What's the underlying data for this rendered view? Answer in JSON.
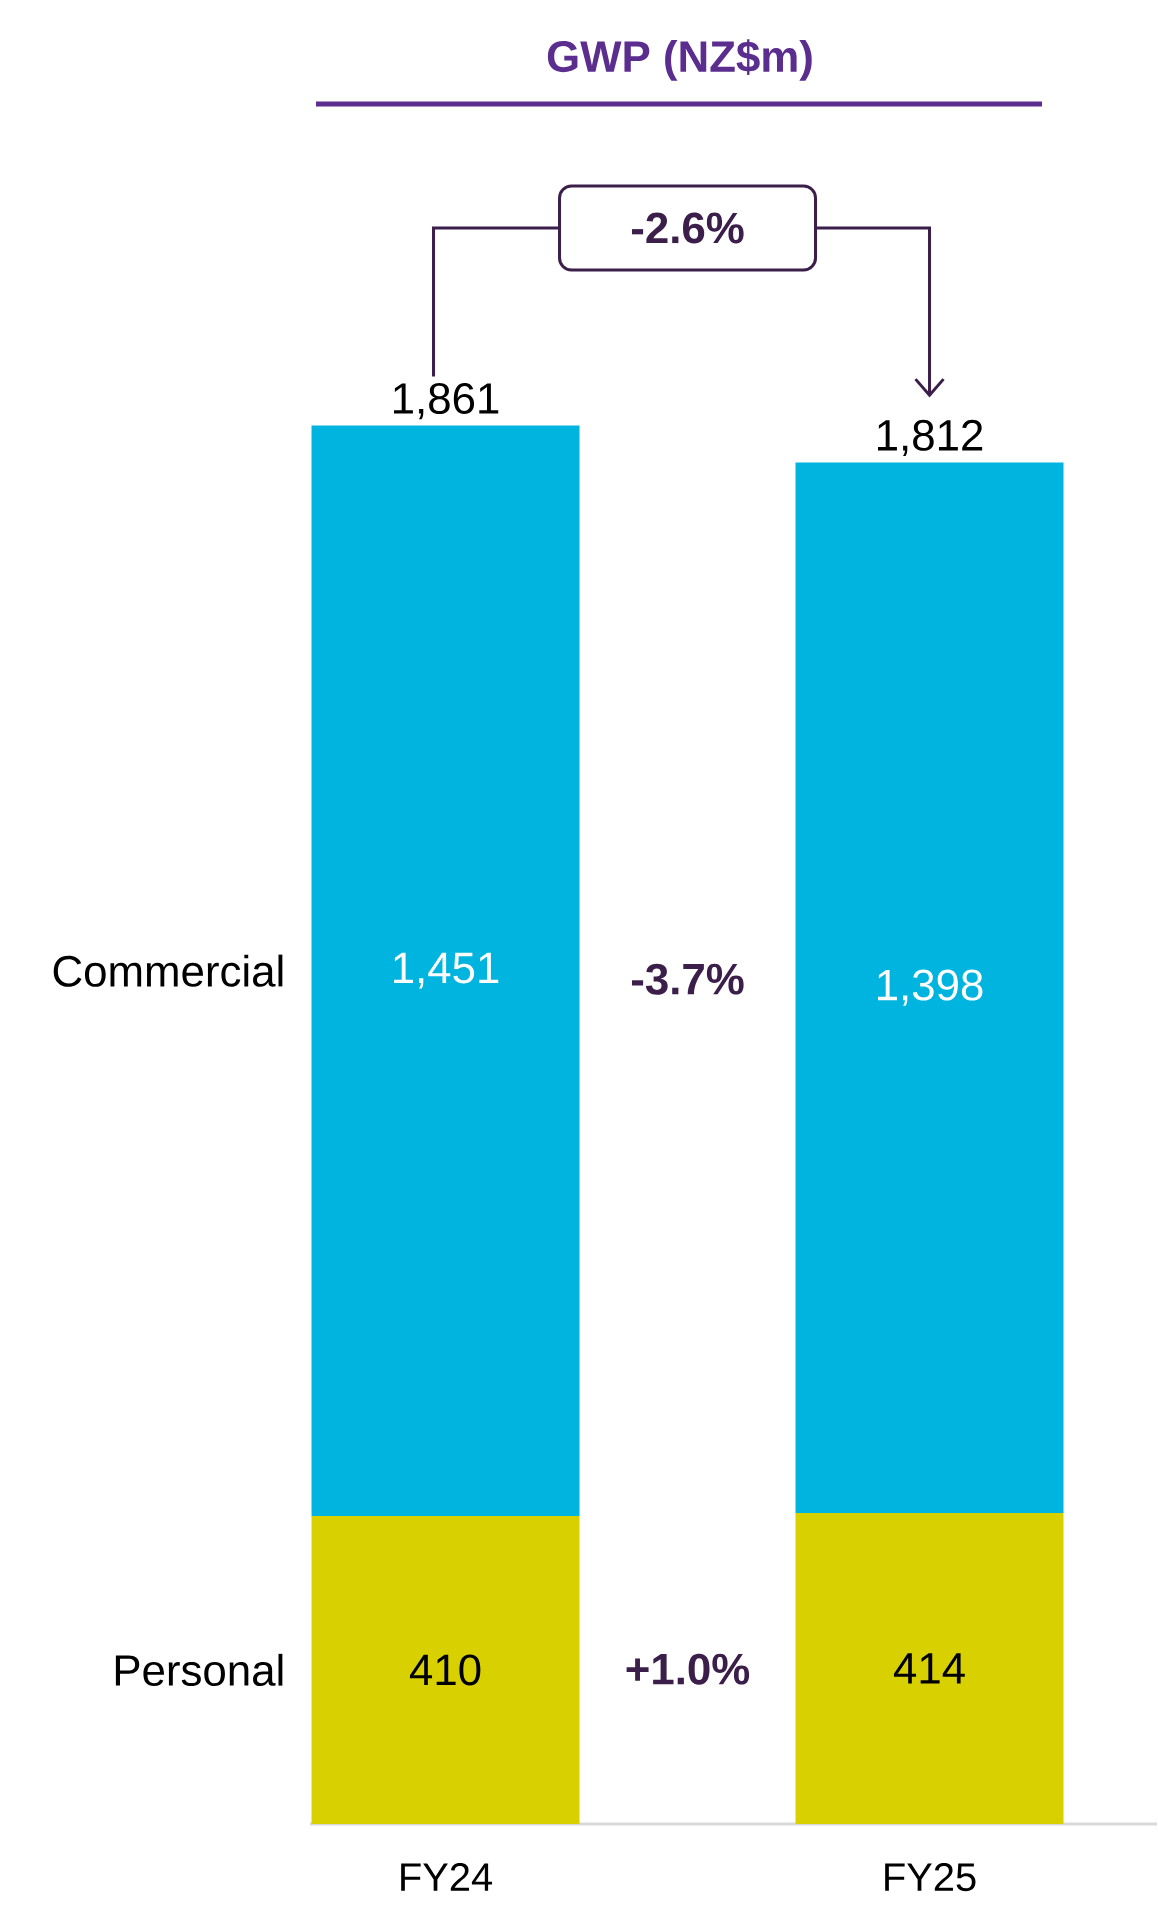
{
  "chart_data": {
    "type": "bar",
    "stacked": true,
    "title": "GWP (NZ$m)",
    "categories": [
      "FY24",
      "FY25"
    ],
    "series": [
      {
        "name": "Personal",
        "color": "#d9d000",
        "values": [
          410,
          414
        ],
        "value_labels": [
          "410",
          "414"
        ]
      },
      {
        "name": "Commercial",
        "color": "#00b4e0",
        "values": [
          1451,
          1398
        ],
        "value_labels": [
          "1,451",
          "1,398"
        ]
      }
    ],
    "totals": [
      "1,861",
      "1,812"
    ],
    "annotations": [
      "-2.6%",
      "-3.7%",
      "+1.0%"
    ],
    "legend": false
  }
}
